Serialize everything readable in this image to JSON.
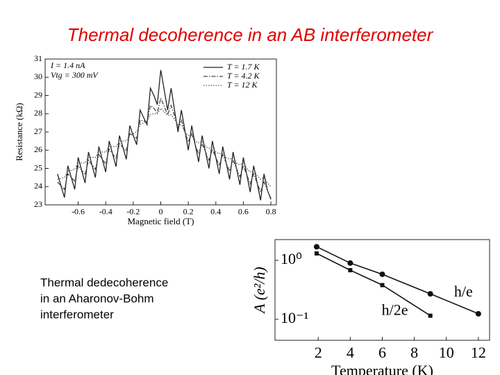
{
  "slide": {
    "title": "Thermal decoherence in an AB interferometer",
    "caption": [
      "Thermal dedecoherence",
      "in an Aharonov-Bohm",
      "interferometer"
    ]
  },
  "chart_data": [
    {
      "type": "line",
      "x_label": "Magnetic field (T)",
      "y_label": "Resistance (kΩ)",
      "annotations": [
        "I = 1.4 nA",
        "Vtg = 300 mV"
      ],
      "legend": "upper right",
      "xlim": [
        -0.84,
        0.84
      ],
      "ylim": [
        23,
        31
      ],
      "xticks": [
        -0.6,
        -0.4,
        -0.2,
        0,
        0.2,
        0.4,
        0.6,
        0.8
      ],
      "yticks": [
        23,
        24,
        25,
        26,
        27,
        28,
        29,
        30,
        31
      ],
      "x": [
        -0.75,
        -0.725,
        -0.7,
        -0.675,
        -0.65,
        -0.625,
        -0.6,
        -0.575,
        -0.55,
        -0.525,
        -0.5,
        -0.475,
        -0.45,
        -0.425,
        -0.4,
        -0.375,
        -0.35,
        -0.325,
        -0.3,
        -0.275,
        -0.25,
        -0.225,
        -0.2,
        -0.175,
        -0.15,
        -0.125,
        -0.1,
        -0.075,
        -0.05,
        -0.025,
        0,
        0.025,
        0.05,
        0.075,
        0.1,
        0.125,
        0.15,
        0.175,
        0.2,
        0.225,
        0.25,
        0.275,
        0.3,
        0.325,
        0.35,
        0.375,
        0.4,
        0.425,
        0.45,
        0.475,
        0.5,
        0.525,
        0.55,
        0.575,
        0.6,
        0.625,
        0.65,
        0.675,
        0.7,
        0.725,
        0.75,
        0.775,
        0.8
      ],
      "series": [
        {
          "name": "T = 1.7 K",
          "color": "#222222",
          "dash": "solid",
          "values": [
            24.7,
            24.05,
            23.4,
            25.15,
            24.5,
            23.85,
            25.6,
            24.9,
            24.2,
            25.9,
            25.2,
            24.5,
            26.2,
            25.5,
            24.8,
            26.5,
            25.8,
            25.1,
            26.8,
            26.15,
            25.5,
            27.35,
            26.8,
            26.3,
            28.2,
            27.8,
            27.4,
            29.4,
            29.0,
            28.5,
            30.4,
            29.3,
            28.2,
            29.4,
            28.2,
            27.0,
            28.2,
            27.1,
            26.0,
            27.35,
            26.3,
            25.35,
            26.8,
            25.9,
            25.0,
            26.5,
            25.6,
            24.7,
            26.2,
            25.3,
            24.4,
            25.9,
            25.0,
            24.1,
            25.6,
            24.65,
            23.7,
            25.15,
            24.2,
            23.25,
            24.7,
            23.8,
            23.3
          ]
        },
        {
          "name": "T = 4.2 K",
          "color": "#444444",
          "dash": "dashdot",
          "values": [
            24.25,
            24.05,
            23.85,
            24.7,
            24.5,
            24.3,
            25.15,
            24.9,
            24.65,
            25.45,
            25.2,
            24.95,
            25.75,
            25.5,
            25.25,
            26.05,
            25.8,
            25.55,
            26.35,
            26.15,
            25.95,
            26.9,
            26.8,
            26.65,
            27.65,
            27.6,
            27.55,
            28.45,
            28.3,
            28.05,
            28.85,
            28.4,
            27.95,
            28.45,
            27.9,
            27.25,
            27.65,
            27.0,
            26.45,
            26.9,
            26.3,
            25.8,
            26.35,
            25.9,
            25.45,
            26.05,
            25.6,
            25.15,
            25.75,
            25.3,
            24.85,
            25.45,
            25.0,
            24.55,
            25.15,
            24.65,
            24.15,
            24.7,
            24.2,
            23.7,
            24.25,
            23.8,
            23.35
          ]
        },
        {
          "name": "T = 12 K",
          "color": "#555555",
          "dash": "dotted",
          "values": [
            24.4,
            24.45,
            24.5,
            24.85,
            24.9,
            24.95,
            25.3,
            25.3,
            25.3,
            25.6,
            25.6,
            25.6,
            25.9,
            25.9,
            25.9,
            26.2,
            26.2,
            26.2,
            26.5,
            26.5,
            26.5,
            26.85,
            26.9,
            27.0,
            27.4,
            27.5,
            27.6,
            27.95,
            28.0,
            28.0,
            28.3,
            28.1,
            27.9,
            27.95,
            27.7,
            27.4,
            27.4,
            27.0,
            26.8,
            26.85,
            26.5,
            26.4,
            26.5,
            26.2,
            26.1,
            26.2,
            25.9,
            25.8,
            25.9,
            25.6,
            25.5,
            25.6,
            25.3,
            25.2,
            25.3,
            25.0,
            24.8,
            24.9,
            24.6,
            24.4,
            24.5,
            24.2,
            24.0
          ]
        }
      ]
    },
    {
      "type": "line",
      "x_label": "Temperature (K)",
      "y_label": "A (e²/h)",
      "legend": "inline",
      "log_y": true,
      "xlim": [
        -0.7,
        12.7
      ],
      "ylim": [
        0.044,
        2.25
      ],
      "xticks": [
        2,
        4,
        6,
        8,
        10,
        12
      ],
      "yticks": [
        {
          "value": 1,
          "label": "10⁰"
        },
        {
          "value": 0.1,
          "label": "10⁻¹"
        }
      ],
      "series": [
        {
          "name": "h/e",
          "color": "#111111",
          "marker": "circle",
          "x": [
            1.9,
            4,
            6,
            9,
            12
          ],
          "values": [
            1.7,
            0.9,
            0.58,
            0.27,
            0.124
          ]
        },
        {
          "name": "h/2e",
          "color": "#111111",
          "marker": "square",
          "x": [
            1.9,
            4,
            6,
            9
          ],
          "values": [
            1.31,
            0.68,
            0.38,
            0.115
          ]
        }
      ]
    }
  ]
}
